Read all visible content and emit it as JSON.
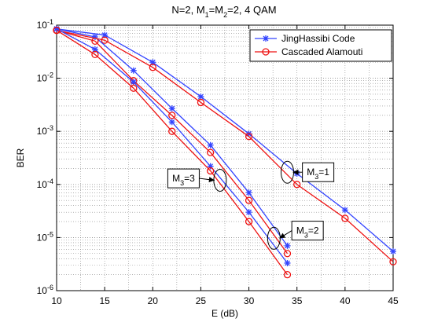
{
  "chart_data": {
    "type": "line",
    "title": "N=2, M1=M2=2, 4 QAM",
    "title_parts": [
      "N=2, M",
      "1",
      "=M",
      "2",
      "=2, 4 QAM"
    ],
    "xlabel": "E (dB)",
    "ylabel": "BER",
    "xlim": [
      10,
      45
    ],
    "ylim": [
      1e-06,
      0.1
    ],
    "yscale": "log",
    "xticks": [
      10,
      15,
      20,
      25,
      30,
      35,
      40,
      45
    ],
    "yticks": [
      {
        "value": 1e-06,
        "base": "10",
        "exp": "-6"
      },
      {
        "value": 1e-05,
        "base": "10",
        "exp": "-5"
      },
      {
        "value": 0.0001,
        "base": "10",
        "exp": "-4"
      },
      {
        "value": 0.001,
        "base": "10",
        "exp": "-3"
      },
      {
        "value": 0.01,
        "base": "10",
        "exp": "-2"
      },
      {
        "value": 0.1,
        "base": "10",
        "exp": "-1"
      }
    ],
    "grid": true,
    "legend_position": "top-right",
    "legend": [
      {
        "name": "JingHassibi Code",
        "color": "#3344ff",
        "marker": "star"
      },
      {
        "name": "Cascaded Alamouti",
        "color": "#ee1111",
        "marker": "circle"
      }
    ],
    "series": [
      {
        "group": "M3=1",
        "legend": 0,
        "x": [
          10,
          15,
          20,
          25,
          30,
          35,
          40,
          45
        ],
        "y": [
          0.085,
          0.065,
          0.02,
          0.0045,
          0.0009,
          0.00016,
          3.3e-05,
          5.5e-06
        ]
      },
      {
        "group": "M3=1",
        "legend": 1,
        "x": [
          10,
          15,
          20,
          25,
          30,
          35,
          40,
          45
        ],
        "y": [
          0.08,
          0.052,
          0.016,
          0.0035,
          0.0008,
          0.0001,
          2.3e-05,
          3.5e-06
        ]
      },
      {
        "group": "M3=2",
        "legend": 0,
        "x": [
          10,
          14,
          18,
          22,
          26,
          30,
          34
        ],
        "y": [
          0.085,
          0.06,
          0.014,
          0.0027,
          0.00055,
          7e-05,
          7e-06
        ]
      },
      {
        "group": "M3=2",
        "legend": 1,
        "x": [
          10,
          14,
          18,
          22,
          26,
          30,
          34
        ],
        "y": [
          0.08,
          0.05,
          0.009,
          0.002,
          0.0004,
          5e-05,
          5e-06
        ]
      },
      {
        "group": "M3=3",
        "legend": 0,
        "x": [
          10,
          14,
          18,
          22,
          26,
          30,
          34
        ],
        "y": [
          0.085,
          0.035,
          0.0085,
          0.0015,
          0.00022,
          3e-05,
          3.3e-06
        ]
      },
      {
        "group": "M3=3",
        "legend": 1,
        "x": [
          10,
          14,
          18,
          22,
          26,
          30,
          34
        ],
        "y": [
          0.08,
          0.028,
          0.0065,
          0.001,
          0.00018,
          2e-05,
          2e-06
        ]
      }
    ],
    "annotations": [
      {
        "id": "M3=1",
        "parts": [
          "M",
          "3",
          "=1"
        ],
        "ellipse": [
          34,
          0.00017
        ],
        "box": [
          37.2,
          0.00017
        ],
        "side": "right"
      },
      {
        "id": "M3=2",
        "parts": [
          "M",
          "3",
          "=2"
        ],
        "ellipse": [
          32.6,
          9.7e-06
        ],
        "box": [
          36.1,
          1.35e-05
        ],
        "side": "right"
      },
      {
        "id": "M3=3",
        "parts": [
          "M",
          "3",
          "=3"
        ],
        "ellipse": [
          27,
          0.00012
        ],
        "box": [
          23.2,
          0.00013
        ],
        "side": "left"
      }
    ]
  }
}
